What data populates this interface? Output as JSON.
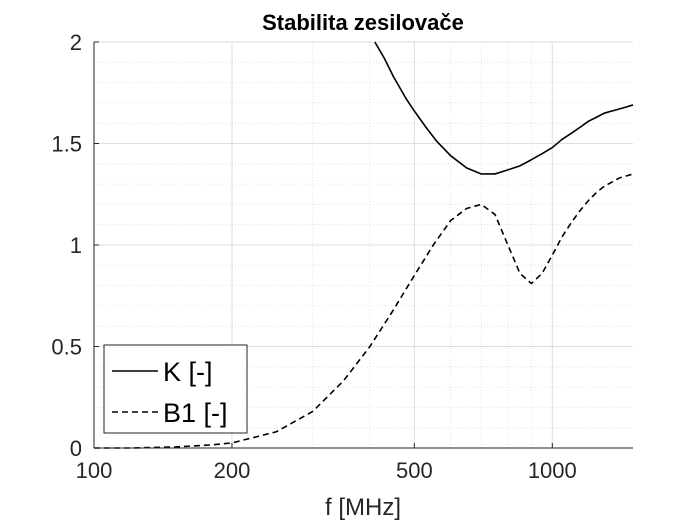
{
  "chart_data": {
    "type": "line",
    "title": "Stabilita zesilovače",
    "xlabel": "f [MHz]",
    "ylabel": "",
    "xscale": "log",
    "xlim": [
      100,
      1500
    ],
    "ylim": [
      0,
      2
    ],
    "grid": true,
    "minor_grid": true,
    "legend_placement": "bottom-left",
    "x_ticks": [
      100,
      200,
      500,
      1000
    ],
    "x_tick_labels": [
      "100",
      "200",
      "500",
      "1000"
    ],
    "y_ticks": [
      0,
      0.5,
      1,
      1.5,
      2
    ],
    "y_tick_labels": [
      "0",
      "0.5",
      "1",
      "1.5",
      "2"
    ],
    "colors": {
      "line": "#000000",
      "axis": "#262626",
      "grid": "#dedede"
    },
    "series": [
      {
        "name": "K [-]",
        "style": "solid",
        "x": [
          410,
          430,
          450,
          480,
          500,
          530,
          560,
          600,
          650,
          700,
          750,
          800,
          850,
          900,
          950,
          1000,
          1050,
          1100,
          1150,
          1200,
          1250,
          1300,
          1350,
          1400,
          1450,
          1500
        ],
        "y": [
          2.02,
          1.92,
          1.83,
          1.72,
          1.66,
          1.58,
          1.51,
          1.44,
          1.38,
          1.35,
          1.35,
          1.37,
          1.39,
          1.42,
          1.45,
          1.48,
          1.52,
          1.55,
          1.58,
          1.61,
          1.63,
          1.65,
          1.66,
          1.67,
          1.68,
          1.69
        ]
      },
      {
        "name": "B1 [-]",
        "style": "dashed",
        "x": [
          100,
          120,
          150,
          180,
          200,
          250,
          300,
          350,
          400,
          450,
          500,
          550,
          600,
          650,
          700,
          750,
          800,
          850,
          900,
          950,
          1000,
          1050,
          1100,
          1150,
          1200,
          1250,
          1300,
          1350,
          1400,
          1450,
          1500
        ],
        "y": [
          0.0,
          0.0,
          0.005,
          0.015,
          0.025,
          0.08,
          0.18,
          0.33,
          0.5,
          0.68,
          0.85,
          1.0,
          1.12,
          1.18,
          1.2,
          1.15,
          1.0,
          0.86,
          0.81,
          0.86,
          0.95,
          1.04,
          1.11,
          1.17,
          1.22,
          1.26,
          1.29,
          1.31,
          1.33,
          1.34,
          1.35
        ]
      }
    ]
  }
}
